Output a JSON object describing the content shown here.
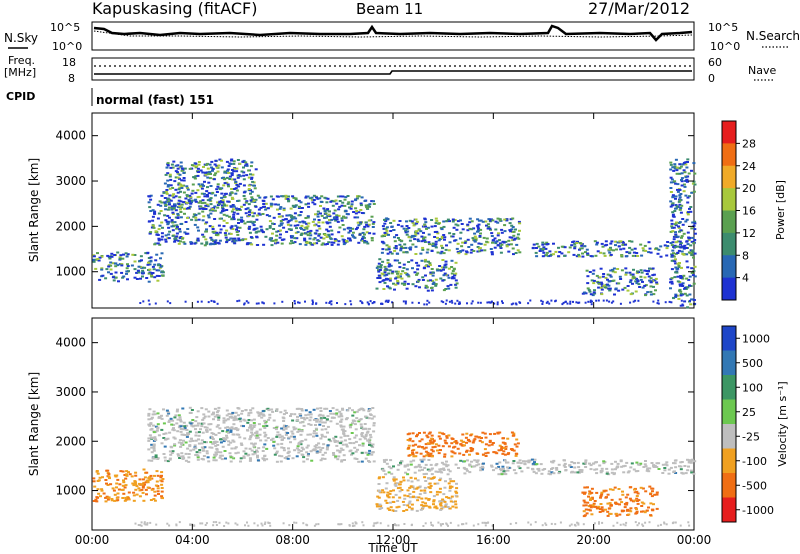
{
  "header": {
    "station": "Kapuskasing (fitACF)",
    "beam": "Beam 11",
    "date": "27/Mar/2012"
  },
  "top_panels": {
    "nsky_label": "N.Sky",
    "nsearch_label": "N.Search",
    "freq_label_1": "Freq.",
    "freq_label_2": "[MHz]",
    "nave_label": "Nave",
    "cpid_label": "CPID",
    "cpid_value": "normal (fast) 151",
    "noise_ticks_left": [
      "10^5",
      "10^0"
    ],
    "noise_ticks_right": [
      "10^5",
      "10^0"
    ],
    "freq_ticks": [
      "18",
      "8"
    ],
    "nave_ticks": [
      "60",
      "0"
    ]
  },
  "chart_data": [
    {
      "type": "heatmap",
      "name": "power",
      "ylabel": "Slant Range [km]",
      "ylim": [
        200,
        4500
      ],
      "yticks": [
        1000,
        2000,
        3000,
        4000
      ],
      "xlim_hours": [
        0,
        24
      ],
      "colorbar": {
        "label": "Power [dB]",
        "ticks": [
          "4",
          "8",
          "12",
          "16",
          "20",
          "24",
          "28"
        ],
        "colors": [
          "#1e32d2",
          "#2868b4",
          "#3c8c6e",
          "#5aa050",
          "#a8c83c",
          "#f0aa28",
          "#f06e14",
          "#e61e1e"
        ]
      },
      "echo_bands": [
        {
          "t": [
            0,
            2.8
          ],
          "range_km": [
            800,
            1450
          ]
        },
        {
          "t": [
            2.2,
            11.2
          ],
          "range_km": [
            1600,
            2700
          ]
        },
        {
          "t": [
            2.8,
            6.5
          ],
          "range_km": [
            2400,
            3500
          ]
        },
        {
          "t": [
            11.5,
            17.0
          ],
          "range_km": [
            1400,
            2200
          ]
        },
        {
          "t": [
            11.3,
            14.5
          ],
          "range_km": [
            600,
            1300
          ]
        },
        {
          "t": [
            17.5,
            24
          ],
          "range_km": [
            1350,
            1700
          ]
        },
        {
          "t": [
            19.5,
            22.5
          ],
          "range_km": [
            500,
            1100
          ]
        },
        {
          "t": [
            23,
            24
          ],
          "range_km": [
            200,
            3500
          ]
        }
      ]
    },
    {
      "type": "heatmap",
      "name": "velocity",
      "ylabel": "Slant Range [km]",
      "ylim": [
        200,
        4500
      ],
      "yticks": [
        1000,
        2000,
        3000,
        4000
      ],
      "xlim_hours": [
        0,
        24
      ],
      "xlabel": "Time UT",
      "xticks": [
        "00:00",
        "04:00",
        "08:00",
        "12:00",
        "16:00",
        "20:00",
        "00:00"
      ],
      "colorbar": {
        "label": "Velocity [m s⁻¹]",
        "ticks": [
          "1000",
          "500",
          "100",
          "25",
          "-25",
          "-100",
          "-500",
          "-1000"
        ],
        "colors": [
          "#1e46c8",
          "#3278b4",
          "#3c9664",
          "#6cc850",
          "#bebebe",
          "#f0a020",
          "#f06e14",
          "#e61e1e"
        ]
      },
      "echo_bands": [
        {
          "t": [
            0,
            2.8
          ],
          "range_km": [
            800,
            1450
          ],
          "velocity": "negative"
        },
        {
          "t": [
            2.2,
            11.2
          ],
          "range_km": [
            1600,
            2700
          ],
          "velocity": "~0"
        },
        {
          "t": [
            12.5,
            17.0
          ],
          "range_km": [
            1700,
            2200
          ],
          "velocity": "-500"
        },
        {
          "t": [
            11.5,
            24
          ],
          "range_km": [
            1350,
            1650
          ],
          "velocity": "~0"
        },
        {
          "t": [
            11.3,
            14.5
          ],
          "range_km": [
            600,
            1300
          ],
          "velocity": "-100"
        },
        {
          "t": [
            19.5,
            22.5
          ],
          "range_km": [
            500,
            1100
          ],
          "velocity": "-500"
        }
      ]
    }
  ],
  "strings": {
    "ylabel": "Slant Range [km]",
    "xlabel": "Time UT"
  }
}
